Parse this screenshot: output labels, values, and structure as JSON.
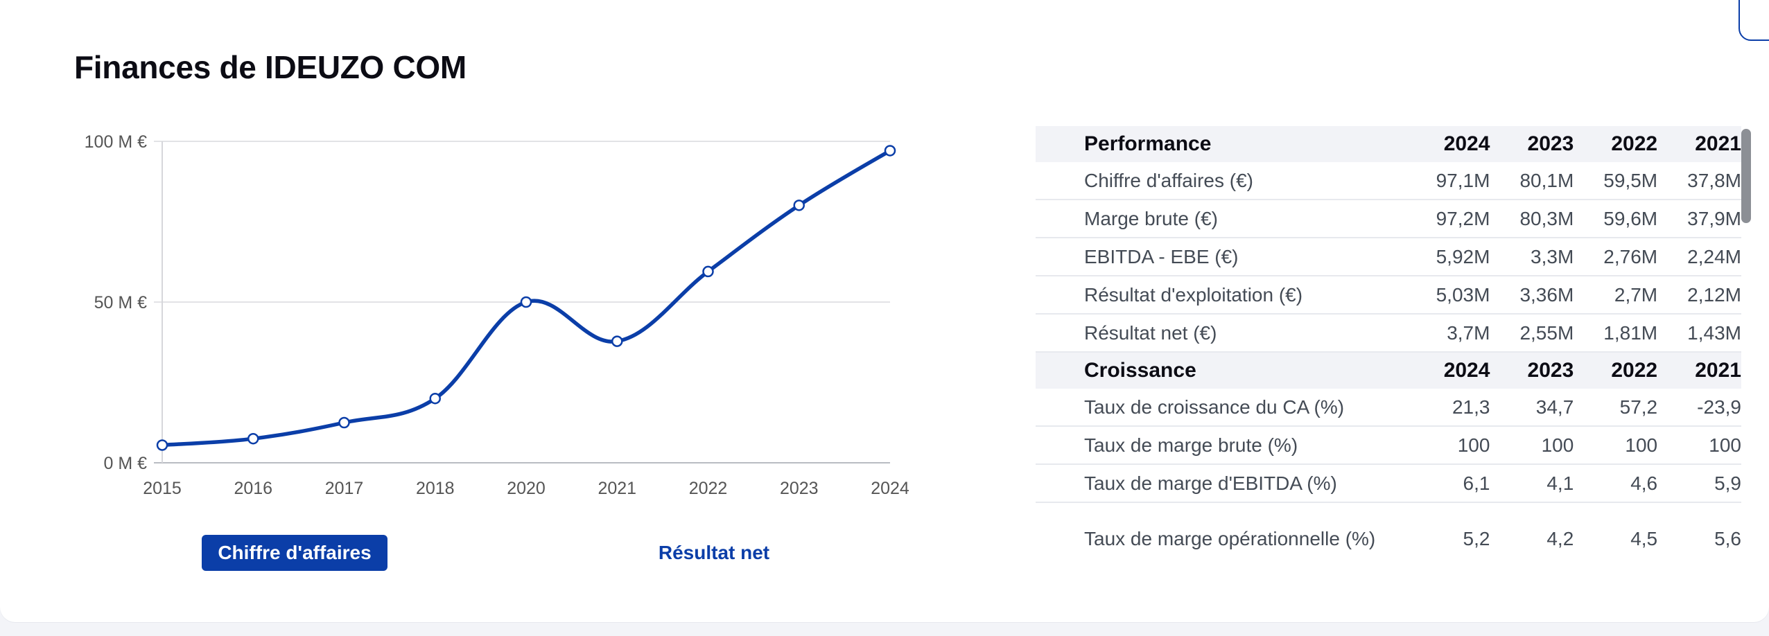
{
  "title": "Finances de IDEUZO COM",
  "chart_toggle": {
    "active": "Chiffre d'affaires",
    "inactive": "Résultat net"
  },
  "chart_data": {
    "type": "line",
    "x": [
      "2015",
      "2016",
      "2017",
      "2018",
      "2020",
      "2021",
      "2022",
      "2023",
      "2024"
    ],
    "values": [
      5.5,
      7.5,
      12.5,
      20,
      50,
      37.8,
      59.5,
      80.1,
      97.1
    ],
    "ylim": [
      0,
      100
    ],
    "y_ticks": [
      {
        "value": 0,
        "label": "0 M €"
      },
      {
        "value": 50,
        "label": "50 M €"
      },
      {
        "value": 100,
        "label": "100 M €"
      }
    ],
    "grid": "horizontal",
    "color": "#0b3ea8"
  },
  "table": {
    "sections": [
      {
        "header": [
          "Performance",
          "2024",
          "2023",
          "2022",
          "2021"
        ],
        "rows": [
          {
            "label": "Chiffre d'affaires (€)",
            "values": [
              "97,1M",
              "80,1M",
              "59,5M",
              "37,8M"
            ]
          },
          {
            "label": "Marge brute (€)",
            "values": [
              "97,2M",
              "80,3M",
              "59,6M",
              "37,9M"
            ]
          },
          {
            "label": "EBITDA - EBE (€)",
            "values": [
              "5,92M",
              "3,3M",
              "2,76M",
              "2,24M"
            ]
          },
          {
            "label": "Résultat d'exploitation (€)",
            "values": [
              "5,03M",
              "3,36M",
              "2,7M",
              "2,12M"
            ]
          },
          {
            "label": "Résultat net (€)",
            "values": [
              "3,7M",
              "2,55M",
              "1,81M",
              "1,43M"
            ]
          }
        ]
      },
      {
        "header": [
          "Croissance",
          "2024",
          "2023",
          "2022",
          "2021"
        ],
        "rows": [
          {
            "label": "Taux de croissance du CA (%)",
            "values": [
              "21,3",
              "34,7",
              "57,2",
              "-23,9"
            ]
          },
          {
            "label": "Taux de marge brute (%)",
            "values": [
              "100",
              "100",
              "100",
              "100"
            ]
          },
          {
            "label": "Taux de marge d'EBITDA (%)",
            "values": [
              "6,1",
              "4,1",
              "4,6",
              "5,9"
            ]
          },
          {
            "label": "Taux de marge opérationnelle (%)",
            "values": [
              "5,2",
              "4,2",
              "4,5",
              "5,6"
            ]
          }
        ]
      }
    ]
  }
}
